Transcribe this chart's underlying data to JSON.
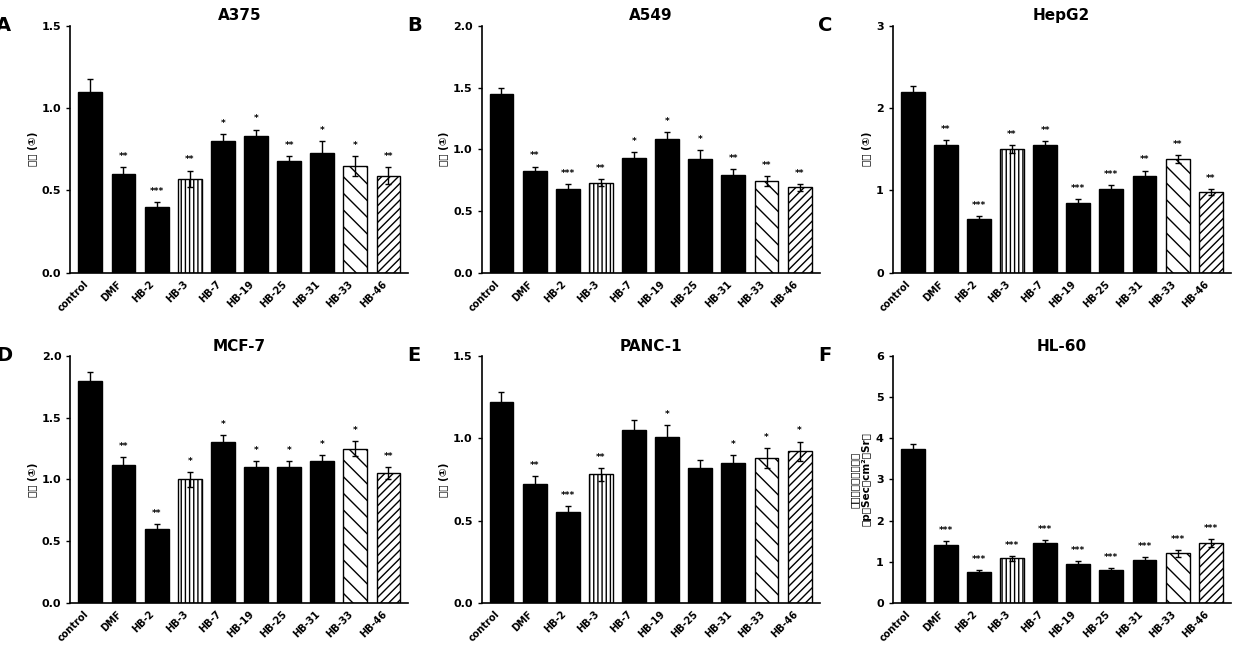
{
  "panels": [
    {
      "label": "A",
      "title": "A375",
      "ylabel": "增殖 (①)",
      "ylim": [
        0,
        1.5
      ],
      "yticks": [
        0.0,
        0.5,
        1.0,
        1.5
      ],
      "ytick_labels": [
        "0.0",
        "0.5",
        "1.0",
        "1.5"
      ],
      "categories": [
        "control",
        "DMF",
        "HB-2",
        "HB-3",
        "HB-7",
        "HB-19",
        "HB-25",
        "HB-31",
        "HB-33",
        "HB-46"
      ],
      "values": [
        1.1,
        0.6,
        0.4,
        0.57,
        0.8,
        0.83,
        0.68,
        0.73,
        0.65,
        0.59
      ],
      "errors": [
        0.08,
        0.04,
        0.03,
        0.05,
        0.04,
        0.04,
        0.03,
        0.07,
        0.06,
        0.05
      ],
      "significance": [
        "",
        "**",
        "***",
        "**",
        "*",
        "*",
        "**",
        "*",
        "*",
        "**"
      ]
    },
    {
      "label": "B",
      "title": "A549",
      "ylabel": "增殖 (①)",
      "ylim": [
        0,
        2.0
      ],
      "yticks": [
        0.0,
        0.5,
        1.0,
        1.5,
        2.0
      ],
      "ytick_labels": [
        "0.0",
        "0.5",
        "1.0",
        "1.5",
        "2.0"
      ],
      "categories": [
        "control",
        "DMF",
        "HB-2",
        "HB-3",
        "HB-7",
        "HB-19",
        "HB-25",
        "HB-31",
        "HB-33",
        "HB-46"
      ],
      "values": [
        1.45,
        0.82,
        0.68,
        0.73,
        0.93,
        1.08,
        0.92,
        0.79,
        0.74,
        0.69
      ],
      "errors": [
        0.05,
        0.04,
        0.04,
        0.03,
        0.05,
        0.06,
        0.07,
        0.05,
        0.04,
        0.03
      ],
      "significance": [
        "",
        "**",
        "***",
        "**",
        "*",
        "*",
        "*",
        "**",
        "**",
        "**"
      ]
    },
    {
      "label": "C",
      "title": "HepG2",
      "ylabel": "增殖 (①)",
      "ylim": [
        0,
        3
      ],
      "yticks": [
        0,
        1,
        2,
        3
      ],
      "ytick_labels": [
        "0",
        "1",
        "2",
        "3"
      ],
      "categories": [
        "control",
        "DMF",
        "HB-2",
        "HB-3",
        "HB-7",
        "HB-19",
        "HB-25",
        "HB-31",
        "HB-33",
        "HB-46"
      ],
      "values": [
        2.2,
        1.55,
        0.65,
        1.5,
        1.55,
        0.85,
        1.02,
        1.18,
        1.38,
        0.98
      ],
      "errors": [
        0.07,
        0.06,
        0.04,
        0.05,
        0.05,
        0.04,
        0.04,
        0.06,
        0.05,
        0.04
      ],
      "significance": [
        "",
        "**",
        "***",
        "**",
        "**",
        "***",
        "***",
        "**",
        "**",
        "**"
      ]
    },
    {
      "label": "D",
      "title": "MCF-7",
      "ylabel": "增殖 (①)",
      "ylim": [
        0,
        2.0
      ],
      "yticks": [
        0.0,
        0.5,
        1.0,
        1.5,
        2.0
      ],
      "ytick_labels": [
        "0.0",
        "0.5",
        "1.0",
        "1.5",
        "2.0"
      ],
      "categories": [
        "control",
        "DMF",
        "HB-2",
        "HB-3",
        "HB-7",
        "HB-19",
        "HB-25",
        "HB-31",
        "HB-33",
        "HB-46"
      ],
      "values": [
        1.8,
        1.12,
        0.6,
        1.0,
        1.3,
        1.1,
        1.1,
        1.15,
        1.25,
        1.05
      ],
      "errors": [
        0.07,
        0.06,
        0.04,
        0.06,
        0.06,
        0.05,
        0.05,
        0.05,
        0.06,
        0.05
      ],
      "significance": [
        "",
        "**",
        "**",
        "*",
        "*",
        "*",
        "*",
        "*",
        "*",
        "**"
      ]
    },
    {
      "label": "E",
      "title": "PANC-1",
      "ylabel": "增殖 (①)",
      "ylim": [
        0,
        1.5
      ],
      "yticks": [
        0.0,
        0.5,
        1.0,
        1.5
      ],
      "ytick_labels": [
        "0.0",
        "0.5",
        "1.0",
        "1.5"
      ],
      "categories": [
        "control",
        "DMF",
        "HB-2",
        "HB-3",
        "HB-7",
        "HB-19",
        "HB-25",
        "HB-31",
        "HB-33",
        "HB-46"
      ],
      "values": [
        1.22,
        0.72,
        0.55,
        0.78,
        1.05,
        1.01,
        0.82,
        0.85,
        0.88,
        0.92
      ],
      "errors": [
        0.06,
        0.05,
        0.04,
        0.04,
        0.06,
        0.07,
        0.05,
        0.05,
        0.06,
        0.06
      ],
      "significance": [
        "",
        "**",
        "***",
        "**",
        "",
        "*",
        "",
        "*",
        "*",
        "*"
      ]
    },
    {
      "label": "F",
      "title": "HL-60",
      "ylabel": "白血病细胞内分布量\n（p／Sec／cm²／Sr）",
      "ylim": [
        0,
        6
      ],
      "yticks": [
        0,
        1,
        2,
        3,
        4,
        5,
        6
      ],
      "ytick_labels": [
        "0",
        "1",
        "2",
        "3",
        "4",
        "5",
        "6"
      ],
      "categories": [
        "control",
        "DMF",
        "HB-2",
        "HB-3",
        "HB-7",
        "HB-19",
        "HB-25",
        "HB-31",
        "HB-33",
        "HB-46"
      ],
      "values": [
        3.75,
        1.4,
        0.75,
        1.08,
        1.45,
        0.95,
        0.8,
        1.05,
        1.2,
        1.45
      ],
      "errors": [
        0.1,
        0.1,
        0.05,
        0.06,
        0.08,
        0.06,
        0.05,
        0.07,
        0.08,
        0.1
      ],
      "significance": [
        "",
        "***",
        "***",
        "***",
        "***",
        "***",
        "***",
        "***",
        "***",
        "***"
      ]
    }
  ],
  "background_color": "#ffffff",
  "fig_width": 12.39,
  "fig_height": 6.52
}
